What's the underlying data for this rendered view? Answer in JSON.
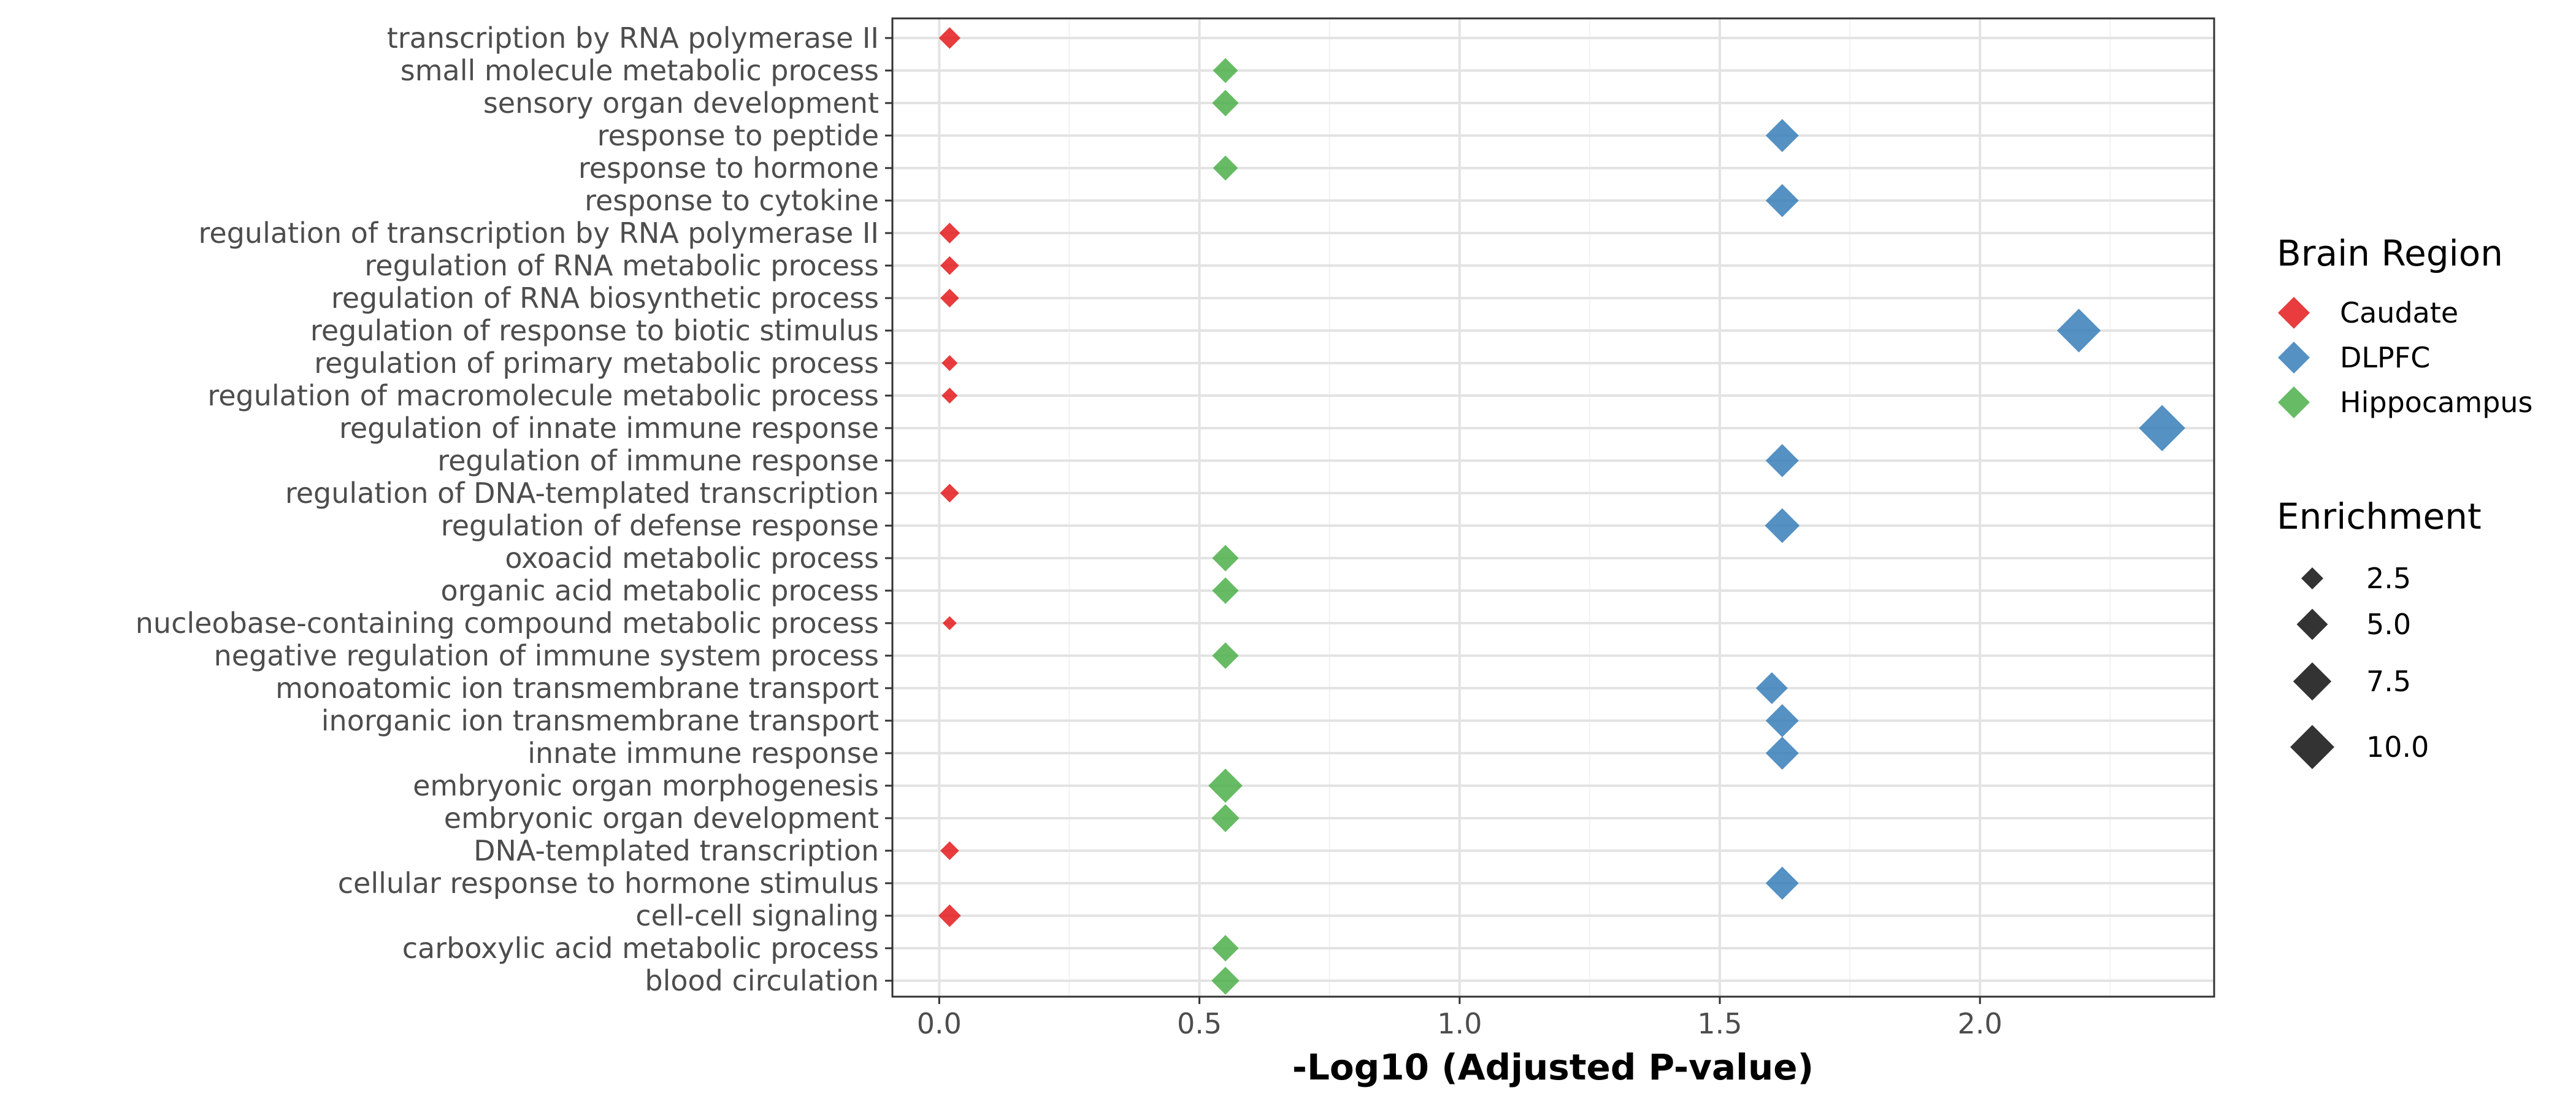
{
  "chart_data": {
    "type": "scatter",
    "xlabel": "-Log10 (Adjusted P-value)",
    "ylabel": "",
    "title": "",
    "xlim": [
      -0.09,
      2.45
    ],
    "xticks": [
      0.0,
      0.5,
      1.0,
      1.5,
      2.0
    ],
    "xtick_labels": [
      "0.0",
      "0.5",
      "1.0",
      "1.5",
      "2.0"
    ],
    "grid": true,
    "marker": "diamond",
    "categories": [
      "transcription by RNA polymerase II",
      "small molecule metabolic process",
      "sensory organ development",
      "response to peptide",
      "response to hormone",
      "response to cytokine",
      "regulation of transcription by RNA polymerase II",
      "regulation of RNA metabolic process",
      "regulation of RNA biosynthetic process",
      "regulation of response to biotic stimulus",
      "regulation of primary metabolic process",
      "regulation of macromolecule metabolic process",
      "regulation of innate immune response",
      "regulation of immune response",
      "regulation of DNA-templated transcription",
      "regulation of defense response",
      "oxoacid metabolic process",
      "organic acid metabolic process",
      "nucleobase-containing compound metabolic process",
      "negative regulation of immune system process",
      "monoatomic ion transmembrane transport",
      "inorganic ion transmembrane transport",
      "innate immune response",
      "embryonic organ morphogenesis",
      "embryonic organ development",
      "DNA-templated transcription",
      "cellular response to hormone stimulus",
      "cell-cell signaling",
      "carboxylic acid metabolic process",
      "blood circulation"
    ],
    "colors": {
      "Caudate": "#e41a1c",
      "DLPFC": "#377eb8",
      "Hippocampus": "#4daf4a"
    },
    "points": [
      {
        "term": "transcription by RNA polymerase II",
        "x": 0.02,
        "region": "Caudate",
        "enrichment": 2.4
      },
      {
        "term": "small molecule metabolic process",
        "x": 0.55,
        "region": "Hippocampus",
        "enrichment": 3.2
      },
      {
        "term": "sensory organ development",
        "x": 0.55,
        "region": "Hippocampus",
        "enrichment": 3.6
      },
      {
        "term": "response to peptide",
        "x": 1.62,
        "region": "DLPFC",
        "enrichment": 5.6
      },
      {
        "term": "response to hormone",
        "x": 0.55,
        "region": "Hippocampus",
        "enrichment": 3.2
      },
      {
        "term": "response to cytokine",
        "x": 1.62,
        "region": "DLPFC",
        "enrichment": 5.6
      },
      {
        "term": "regulation of transcription by RNA polymerase II",
        "x": 0.02,
        "region": "Caudate",
        "enrichment": 2.2
      },
      {
        "term": "regulation of RNA metabolic process",
        "x": 0.02,
        "region": "Caudate",
        "enrichment": 1.8
      },
      {
        "term": "regulation of RNA biosynthetic process",
        "x": 0.02,
        "region": "Caudate",
        "enrichment": 1.8
      },
      {
        "term": "regulation of response to biotic stimulus",
        "x": 2.19,
        "region": "DLPFC",
        "enrichment": 9.8
      },
      {
        "term": "regulation of primary metabolic process",
        "x": 0.02,
        "region": "Caudate",
        "enrichment": 1.3
      },
      {
        "term": "regulation of macromolecule metabolic process",
        "x": 0.02,
        "region": "Caudate",
        "enrichment": 1.3
      },
      {
        "term": "regulation of innate immune response",
        "x": 2.35,
        "region": "DLPFC",
        "enrichment": 11.0
      },
      {
        "term": "regulation of immune response",
        "x": 1.62,
        "region": "DLPFC",
        "enrichment": 5.6
      },
      {
        "term": "regulation of DNA-templated transcription",
        "x": 0.02,
        "region": "Caudate",
        "enrichment": 1.8
      },
      {
        "term": "regulation of defense response",
        "x": 1.62,
        "region": "DLPFC",
        "enrichment": 6.2
      },
      {
        "term": "oxoacid metabolic process",
        "x": 0.55,
        "region": "Hippocampus",
        "enrichment": 3.6
      },
      {
        "term": "organic acid metabolic process",
        "x": 0.55,
        "region": "Hippocampus",
        "enrichment": 3.6
      },
      {
        "term": "nucleobase-containing compound metabolic process",
        "x": 0.02,
        "region": "Caudate",
        "enrichment": 1.0
      },
      {
        "term": "negative regulation of immune system process",
        "x": 0.55,
        "region": "Hippocampus",
        "enrichment": 3.6
      },
      {
        "term": "monoatomic ion transmembrane transport",
        "x": 1.6,
        "region": "DLPFC",
        "enrichment": 5.2
      },
      {
        "term": "inorganic ion transmembrane transport",
        "x": 1.62,
        "region": "DLPFC",
        "enrichment": 5.6
      },
      {
        "term": "innate immune response",
        "x": 1.62,
        "region": "DLPFC",
        "enrichment": 5.6
      },
      {
        "term": "embryonic organ morphogenesis",
        "x": 0.55,
        "region": "Hippocampus",
        "enrichment": 6.0
      },
      {
        "term": "embryonic organ development",
        "x": 0.55,
        "region": "Hippocampus",
        "enrichment": 4.0
      },
      {
        "term": "DNA-templated transcription",
        "x": 0.02,
        "region": "Caudate",
        "enrichment": 1.8
      },
      {
        "term": "cellular response to hormone stimulus",
        "x": 1.62,
        "region": "DLPFC",
        "enrichment": 5.6
      },
      {
        "term": "cell-cell signaling",
        "x": 0.02,
        "region": "Caudate",
        "enrichment": 2.6
      },
      {
        "term": "carboxylic acid metabolic process",
        "x": 0.55,
        "region": "Hippocampus",
        "enrichment": 3.6
      },
      {
        "term": "blood circulation",
        "x": 0.55,
        "region": "Hippocampus",
        "enrichment": 4.0
      }
    ],
    "legend": {
      "placement": "right",
      "color_title": "Brain Region",
      "color_entries": [
        "Caudate",
        "DLPFC",
        "Hippocampus"
      ],
      "size_title": "Enrichment",
      "size_entries": [
        {
          "label": "2.5",
          "value": 2.5
        },
        {
          "label": "5.0",
          "value": 5.0
        },
        {
          "label": "7.5",
          "value": 7.5
        },
        {
          "label": "10.0",
          "value": 10.0
        }
      ]
    }
  }
}
